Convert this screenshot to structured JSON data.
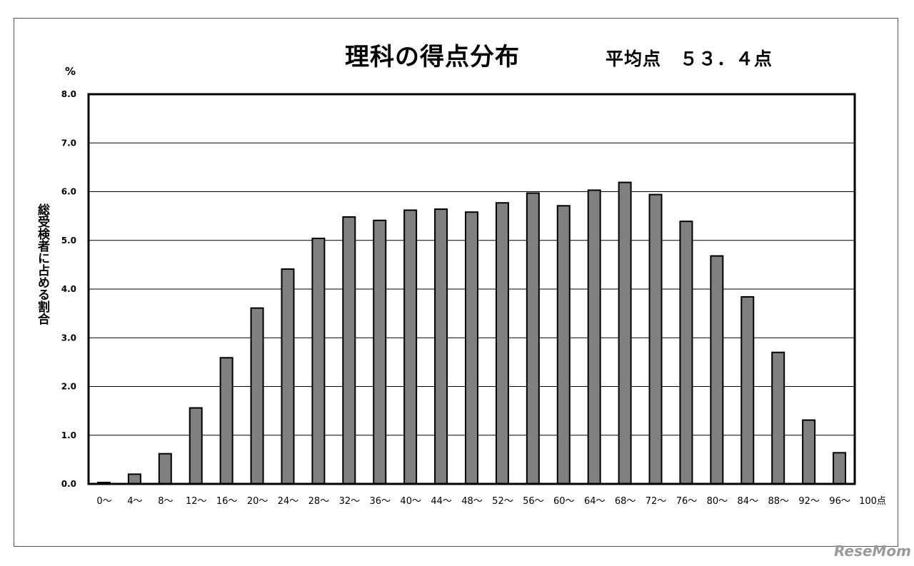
{
  "chart_data": {
    "type": "bar",
    "title": "理科の得点分布",
    "subtitle": "平均点　５３．４点",
    "ylabel": "総受検者に占める割合",
    "yunit": "%",
    "xunit": "100点",
    "ylim": [
      0,
      8
    ],
    "yticks": [
      "0.0",
      "1.0",
      "2.0",
      "3.0",
      "4.0",
      "5.0",
      "6.0",
      "7.0",
      "8.0"
    ],
    "categories": [
      "0〜",
      "4〜",
      "8〜",
      "12〜",
      "16〜",
      "20〜",
      "24〜",
      "28〜",
      "32〜",
      "36〜",
      "40〜",
      "44〜",
      "48〜",
      "52〜",
      "56〜",
      "60〜",
      "64〜",
      "68〜",
      "72〜",
      "76〜",
      "80〜",
      "84〜",
      "88〜",
      "92〜",
      "96〜"
    ],
    "values": [
      0.03,
      0.2,
      0.62,
      1.56,
      2.59,
      3.61,
      4.41,
      5.04,
      5.48,
      5.41,
      5.62,
      5.64,
      5.58,
      5.77,
      5.97,
      5.71,
      6.03,
      6.19,
      5.94,
      5.39,
      4.68,
      3.84,
      2.7,
      1.31,
      0.64
    ],
    "grid": true,
    "bar_color": "#808080"
  },
  "watermark": "ReseMom"
}
